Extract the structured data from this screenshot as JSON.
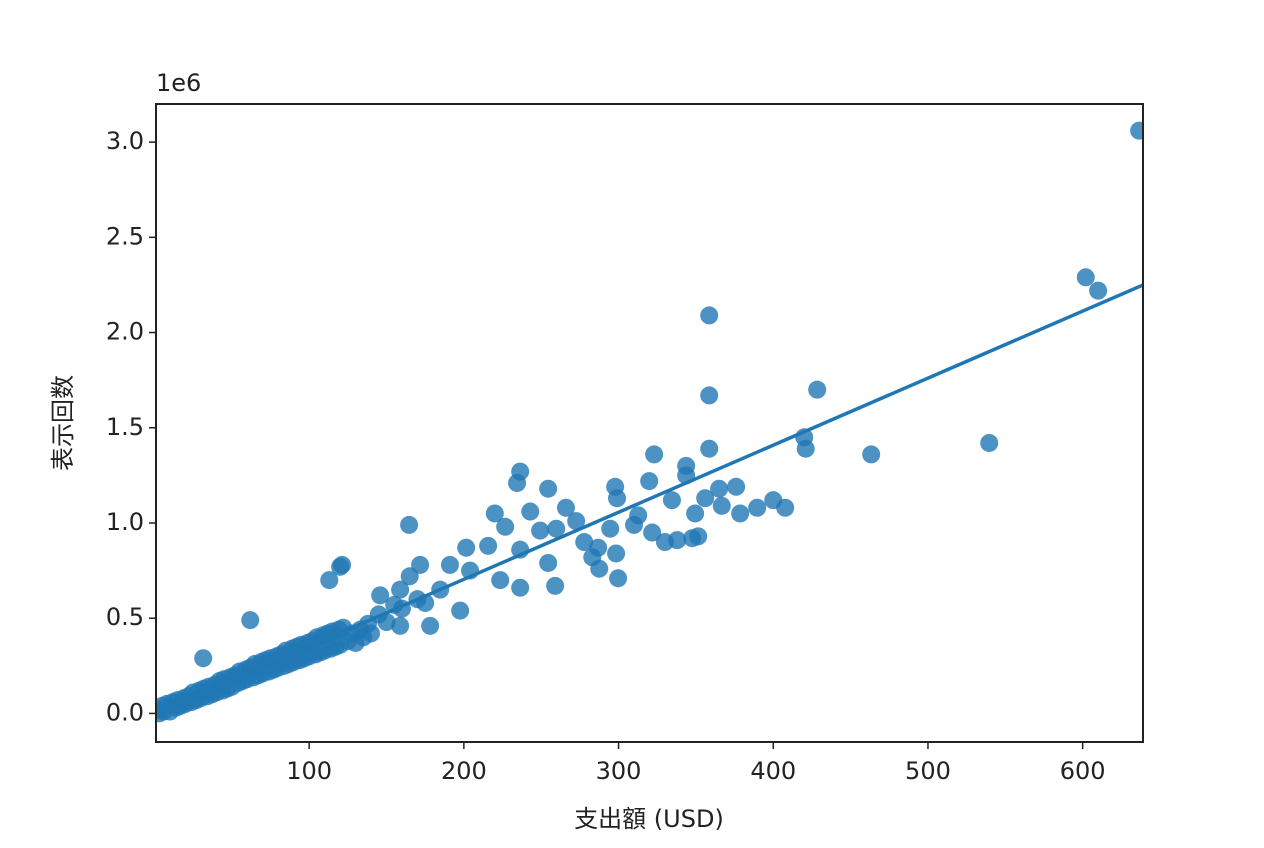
{
  "chart_data": {
    "type": "scatter",
    "x_label": "支出額 (USD)",
    "y_label": "表示回数",
    "y_offset_label": "1e6",
    "color": "#1f77b4",
    "xlim": [
      1,
      639
    ],
    "ylim": [
      -0.15,
      3.2
    ],
    "xticks": [
      100,
      200,
      300,
      400,
      500,
      600
    ],
    "yticks": [
      {
        "value": 0,
        "label": "0.0"
      },
      0.5,
      {
        "value": 1,
        "label": "1.0"
      },
      1.5,
      {
        "value": 2,
        "label": "2.0"
      },
      2.5,
      {
        "value": 3,
        "label": "3.0"
      }
    ],
    "x": [
      636.5,
      602,
      610,
      358.6,
      358.6,
      428.4,
      358.6,
      539.6,
      463.3,
      420,
      421,
      323,
      343.7,
      343.7,
      236.4,
      234.4,
      164.6,
      254.5,
      297.8,
      319.8,
      299,
      334.5,
      356,
      365,
      376,
      366.7,
      378.6,
      389.6,
      400,
      407.7,
      349.5,
      347.6,
      337.9,
      330,
      351.5,
      310,
      312.7,
      321.7,
      294.6,
      277.8,
      286.8,
      283,
      298.4,
      299.7,
      287.5,
      272.6,
      266,
      259.7,
      249.3,
      242.9,
      220,
      226.7,
      215.7,
      201.5,
      236.4,
      254.5,
      259,
      236.4,
      223.5,
      204,
      191,
      171.7,
      120,
      113,
      61.9,
      197.6,
      178.2,
      158.8,
      145.9,
      158.8,
      184.7,
      31.5,
      121.3,
      2,
      3,
      5,
      6,
      8,
      10,
      12,
      14,
      15,
      17,
      19,
      20,
      22,
      24,
      25,
      27,
      29,
      30,
      32,
      34,
      35,
      37,
      39,
      40,
      42,
      44,
      45,
      47,
      49,
      50,
      52,
      54,
      55,
      57,
      59,
      60,
      62,
      64,
      65,
      67,
      69,
      70,
      72,
      74,
      75,
      77,
      79,
      80,
      82,
      84,
      85,
      87,
      89,
      90,
      92,
      94,
      95,
      97,
      99,
      100,
      102,
      104,
      105,
      107,
      109,
      110,
      112,
      114,
      115,
      117,
      119,
      120,
      122,
      125,
      128,
      130,
      133,
      135,
      138,
      140,
      145,
      150,
      155,
      160,
      165,
      170,
      175
    ],
    "values": [
      3.06,
      2.29,
      2.22,
      2.09,
      1.67,
      1.7,
      1.39,
      1.42,
      1.36,
      1.45,
      1.39,
      1.36,
      1.3,
      1.25,
      1.27,
      1.21,
      0.99,
      1.18,
      1.19,
      1.22,
      1.13,
      1.12,
      1.13,
      1.18,
      1.19,
      1.09,
      1.05,
      1.08,
      1.12,
      1.08,
      1.05,
      0.92,
      0.91,
      0.9,
      0.93,
      0.99,
      1.04,
      0.95,
      0.97,
      0.9,
      0.87,
      0.82,
      0.84,
      0.71,
      0.76,
      1.01,
      1.08,
      0.97,
      0.96,
      1.06,
      1.05,
      0.98,
      0.88,
      0.87,
      0.86,
      0.79,
      0.67,
      0.66,
      0.7,
      0.75,
      0.78,
      0.78,
      0.77,
      0.7,
      0.49,
      0.54,
      0.46,
      0.46,
      0.62,
      0.65,
      0.65,
      0.29,
      0.78,
      0.02,
      0.0,
      0.04,
      0.01,
      0.05,
      0.01,
      0.06,
      0.03,
      0.07,
      0.04,
      0.08,
      0.05,
      0.09,
      0.06,
      0.11,
      0.07,
      0.12,
      0.08,
      0.13,
      0.09,
      0.14,
      0.1,
      0.15,
      0.11,
      0.17,
      0.12,
      0.18,
      0.13,
      0.19,
      0.14,
      0.2,
      0.16,
      0.22,
      0.17,
      0.23,
      0.18,
      0.24,
      0.19,
      0.26,
      0.2,
      0.27,
      0.21,
      0.28,
      0.22,
      0.29,
      0.23,
      0.3,
      0.24,
      0.31,
      0.25,
      0.33,
      0.26,
      0.34,
      0.27,
      0.35,
      0.28,
      0.36,
      0.29,
      0.37,
      0.3,
      0.38,
      0.31,
      0.4,
      0.32,
      0.41,
      0.33,
      0.42,
      0.34,
      0.43,
      0.35,
      0.44,
      0.36,
      0.45,
      0.38,
      0.42,
      0.37,
      0.44,
      0.4,
      0.47,
      0.42,
      0.52,
      0.48,
      0.57,
      0.55,
      0.72,
      0.6,
      0.58
    ],
    "fit": {
      "x": [
        1,
        639
      ],
      "values": [
        0.0035,
        2.25
      ]
    }
  }
}
